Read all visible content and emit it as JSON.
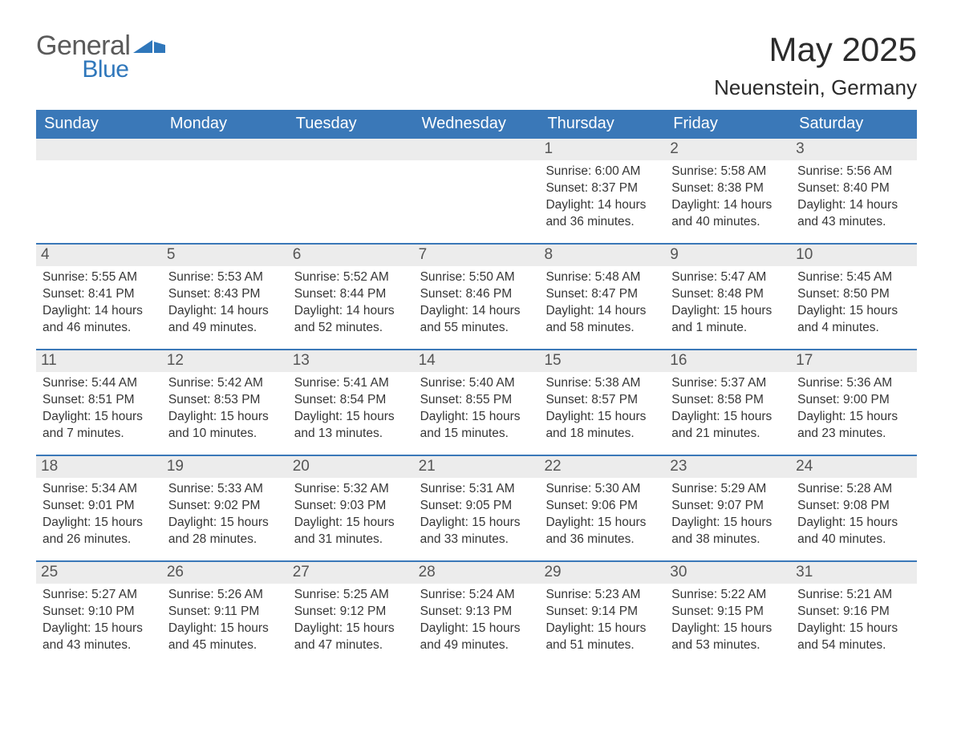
{
  "brand": {
    "word1": "General",
    "word2": "Blue"
  },
  "title": "May 2025",
  "location": "Neuenstein, Germany",
  "colors": {
    "header_bg": "#3a78b8",
    "header_text": "#ffffff",
    "daynum_bg": "#ececec",
    "daynum_text": "#555555",
    "body_text": "#363636",
    "rule": "#3a78b8",
    "logo_gray": "#5a5a5a",
    "logo_blue": "#2f77bb",
    "page_bg": "#ffffff"
  },
  "typography": {
    "title_fontsize": 42,
    "location_fontsize": 26,
    "header_fontsize": 20,
    "daynum_fontsize": 19,
    "body_fontsize": 15.5,
    "font_family": "Arial"
  },
  "layout": {
    "columns": 7,
    "rows": 5,
    "week_start": "Sunday",
    "first_day_column_index": 4
  },
  "weekdays": [
    "Sunday",
    "Monday",
    "Tuesday",
    "Wednesday",
    "Thursday",
    "Friday",
    "Saturday"
  ],
  "days": [
    {
      "n": "1",
      "sunrise": "6:00 AM",
      "sunset": "8:37 PM",
      "daylight": "14 hours and 36 minutes."
    },
    {
      "n": "2",
      "sunrise": "5:58 AM",
      "sunset": "8:38 PM",
      "daylight": "14 hours and 40 minutes."
    },
    {
      "n": "3",
      "sunrise": "5:56 AM",
      "sunset": "8:40 PM",
      "daylight": "14 hours and 43 minutes."
    },
    {
      "n": "4",
      "sunrise": "5:55 AM",
      "sunset": "8:41 PM",
      "daylight": "14 hours and 46 minutes."
    },
    {
      "n": "5",
      "sunrise": "5:53 AM",
      "sunset": "8:43 PM",
      "daylight": "14 hours and 49 minutes."
    },
    {
      "n": "6",
      "sunrise": "5:52 AM",
      "sunset": "8:44 PM",
      "daylight": "14 hours and 52 minutes."
    },
    {
      "n": "7",
      "sunrise": "5:50 AM",
      "sunset": "8:46 PM",
      "daylight": "14 hours and 55 minutes."
    },
    {
      "n": "8",
      "sunrise": "5:48 AM",
      "sunset": "8:47 PM",
      "daylight": "14 hours and 58 minutes."
    },
    {
      "n": "9",
      "sunrise": "5:47 AM",
      "sunset": "8:48 PM",
      "daylight": "15 hours and 1 minute."
    },
    {
      "n": "10",
      "sunrise": "5:45 AM",
      "sunset": "8:50 PM",
      "daylight": "15 hours and 4 minutes."
    },
    {
      "n": "11",
      "sunrise": "5:44 AM",
      "sunset": "8:51 PM",
      "daylight": "15 hours and 7 minutes."
    },
    {
      "n": "12",
      "sunrise": "5:42 AM",
      "sunset": "8:53 PM",
      "daylight": "15 hours and 10 minutes."
    },
    {
      "n": "13",
      "sunrise": "5:41 AM",
      "sunset": "8:54 PM",
      "daylight": "15 hours and 13 minutes."
    },
    {
      "n": "14",
      "sunrise": "5:40 AM",
      "sunset": "8:55 PM",
      "daylight": "15 hours and 15 minutes."
    },
    {
      "n": "15",
      "sunrise": "5:38 AM",
      "sunset": "8:57 PM",
      "daylight": "15 hours and 18 minutes."
    },
    {
      "n": "16",
      "sunrise": "5:37 AM",
      "sunset": "8:58 PM",
      "daylight": "15 hours and 21 minutes."
    },
    {
      "n": "17",
      "sunrise": "5:36 AM",
      "sunset": "9:00 PM",
      "daylight": "15 hours and 23 minutes."
    },
    {
      "n": "18",
      "sunrise": "5:34 AM",
      "sunset": "9:01 PM",
      "daylight": "15 hours and 26 minutes."
    },
    {
      "n": "19",
      "sunrise": "5:33 AM",
      "sunset": "9:02 PM",
      "daylight": "15 hours and 28 minutes."
    },
    {
      "n": "20",
      "sunrise": "5:32 AM",
      "sunset": "9:03 PM",
      "daylight": "15 hours and 31 minutes."
    },
    {
      "n": "21",
      "sunrise": "5:31 AM",
      "sunset": "9:05 PM",
      "daylight": "15 hours and 33 minutes."
    },
    {
      "n": "22",
      "sunrise": "5:30 AM",
      "sunset": "9:06 PM",
      "daylight": "15 hours and 36 minutes."
    },
    {
      "n": "23",
      "sunrise": "5:29 AM",
      "sunset": "9:07 PM",
      "daylight": "15 hours and 38 minutes."
    },
    {
      "n": "24",
      "sunrise": "5:28 AM",
      "sunset": "9:08 PM",
      "daylight": "15 hours and 40 minutes."
    },
    {
      "n": "25",
      "sunrise": "5:27 AM",
      "sunset": "9:10 PM",
      "daylight": "15 hours and 43 minutes."
    },
    {
      "n": "26",
      "sunrise": "5:26 AM",
      "sunset": "9:11 PM",
      "daylight": "15 hours and 45 minutes."
    },
    {
      "n": "27",
      "sunrise": "5:25 AM",
      "sunset": "9:12 PM",
      "daylight": "15 hours and 47 minutes."
    },
    {
      "n": "28",
      "sunrise": "5:24 AM",
      "sunset": "9:13 PM",
      "daylight": "15 hours and 49 minutes."
    },
    {
      "n": "29",
      "sunrise": "5:23 AM",
      "sunset": "9:14 PM",
      "daylight": "15 hours and 51 minutes."
    },
    {
      "n": "30",
      "sunrise": "5:22 AM",
      "sunset": "9:15 PM",
      "daylight": "15 hours and 53 minutes."
    },
    {
      "n": "31",
      "sunrise": "5:21 AM",
      "sunset": "9:16 PM",
      "daylight": "15 hours and 54 minutes."
    }
  ],
  "labels": {
    "sunrise": "Sunrise: ",
    "sunset": "Sunset: ",
    "daylight": "Daylight: "
  }
}
